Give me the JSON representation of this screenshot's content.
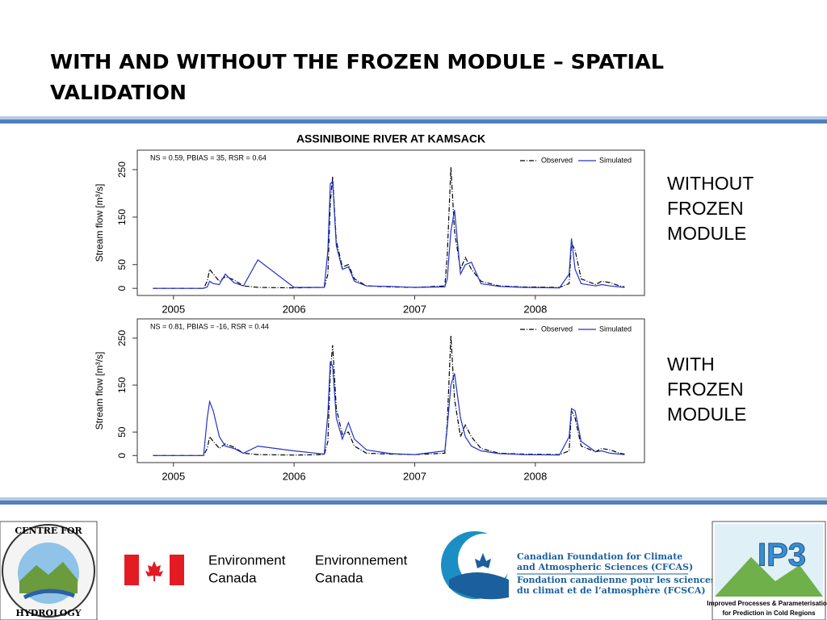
{
  "slide_title": [
    "WITH AND WITHOUT THE FROZEN MODULE – SPATIAL",
    "VALIDATION"
  ],
  "side_labels": [
    [
      "WITHOUT",
      "FROZEN",
      "MODULE"
    ],
    [
      "WITH",
      "FROZEN",
      "MODULE"
    ]
  ],
  "logos": {
    "hydrology": [
      "CENTRE FOR",
      "HYDROLOGY"
    ],
    "env_en": [
      "Environment",
      "Canada"
    ],
    "env_fr": [
      "Environnement",
      "Canada"
    ],
    "cfcas_en": [
      "Canadian Foundation for Climate",
      "and Atmospheric Sciences (CFCAS)"
    ],
    "cfcas_fr": [
      "Fondation canadienne pour les sciences",
      "du climat et de l’atmosphère (FCSCA)"
    ],
    "ip3": "IP3",
    "ip3_caption": [
      "Improved Processes & Parameterisation",
      "for Prediction in Cold Regions"
    ]
  },
  "chart_data": [
    {
      "type": "line",
      "title": "ASSINIBOINE RIVER AT KAMSACK",
      "annotation": "NS = 0.59, PBIAS = 35, RSR = 0.64",
      "ylabel": "Stream flow [m³/s]",
      "x": [
        2004.83,
        2005.25,
        2005.28,
        2005.3,
        2005.33,
        2005.38,
        2005.43,
        2005.5,
        2005.58,
        2005.7,
        2006.0,
        2006.25,
        2006.28,
        2006.3,
        2006.32,
        2006.35,
        2006.4,
        2006.45,
        2006.5,
        2006.6,
        2006.8,
        2007.0,
        2007.25,
        2007.27,
        2007.3,
        2007.33,
        2007.38,
        2007.42,
        2007.47,
        2007.55,
        2007.7,
        2007.9,
        2008.2,
        2008.28,
        2008.3,
        2008.33,
        2008.38,
        2008.5,
        2008.55,
        2008.62,
        2008.7,
        2008.74
      ],
      "series": [
        {
          "name": "Observed",
          "color": "#000000",
          "dash": "6,2,1,2",
          "values": [
            0,
            0,
            15,
            40,
            30,
            15,
            25,
            18,
            5,
            2,
            1,
            2,
            30,
            180,
            235,
            100,
            45,
            50,
            20,
            5,
            3,
            2,
            5,
            70,
            255,
            120,
            40,
            65,
            40,
            15,
            5,
            3,
            2,
            10,
            95,
            80,
            20,
            8,
            15,
            12,
            5,
            3
          ]
        },
        {
          "name": "Simulated",
          "color": "#2233cc",
          "values": [
            0,
            0,
            3,
            15,
            10,
            8,
            30,
            12,
            5,
            60,
            2,
            2,
            80,
            220,
            225,
            90,
            40,
            45,
            15,
            5,
            4,
            2,
            3,
            20,
            120,
            165,
            30,
            50,
            55,
            10,
            4,
            2,
            1,
            30,
            105,
            40,
            10,
            5,
            8,
            5,
            3,
            2
          ]
        }
      ],
      "xlim": [
        2004.7,
        2008.905
      ],
      "xticks": [
        2005,
        2006,
        2007,
        2008
      ],
      "ylim": [
        -15,
        291
      ],
      "yticks": [
        0,
        50,
        150,
        250
      ],
      "legend": "top-right"
    },
    {
      "type": "line",
      "annotation": "NS = 0.81, PBIAS = -16, RSR = 0.44",
      "ylabel": "Stream flow [m³/s]",
      "x": [
        2004.83,
        2005.25,
        2005.28,
        2005.3,
        2005.33,
        2005.38,
        2005.43,
        2005.5,
        2005.58,
        2005.7,
        2006.0,
        2006.25,
        2006.28,
        2006.3,
        2006.32,
        2006.35,
        2006.4,
        2006.45,
        2006.5,
        2006.6,
        2006.8,
        2007.0,
        2007.25,
        2007.27,
        2007.3,
        2007.33,
        2007.38,
        2007.42,
        2007.47,
        2007.55,
        2007.7,
        2007.9,
        2008.2,
        2008.28,
        2008.3,
        2008.33,
        2008.38,
        2008.5,
        2008.55,
        2008.62,
        2008.7,
        2008.74
      ],
      "series": [
        {
          "name": "Observed",
          "color": "#000000",
          "dash": "6,2,1,2",
          "values": [
            0,
            0,
            15,
            40,
            30,
            15,
            25,
            18,
            5,
            2,
            1,
            2,
            30,
            180,
            235,
            100,
            45,
            50,
            20,
            5,
            3,
            2,
            5,
            70,
            255,
            120,
            40,
            65,
            40,
            15,
            5,
            3,
            2,
            10,
            95,
            80,
            20,
            8,
            15,
            12,
            5,
            3
          ]
        },
        {
          "name": "Simulated",
          "color": "#2233cc",
          "values": [
            0,
            0,
            80,
            115,
            95,
            40,
            20,
            15,
            5,
            20,
            10,
            3,
            90,
            200,
            190,
            80,
            35,
            70,
            35,
            12,
            4,
            2,
            10,
            60,
            150,
            175,
            80,
            40,
            20,
            10,
            4,
            2,
            1,
            40,
            100,
            95,
            30,
            8,
            10,
            5,
            3,
            2
          ]
        }
      ],
      "xlim": [
        2004.7,
        2008.905
      ],
      "xticks": [
        2005,
        2006,
        2007,
        2008
      ],
      "ylim": [
        -15,
        291
      ],
      "yticks": [
        0,
        50,
        150,
        250
      ],
      "legend": "top-right"
    }
  ]
}
